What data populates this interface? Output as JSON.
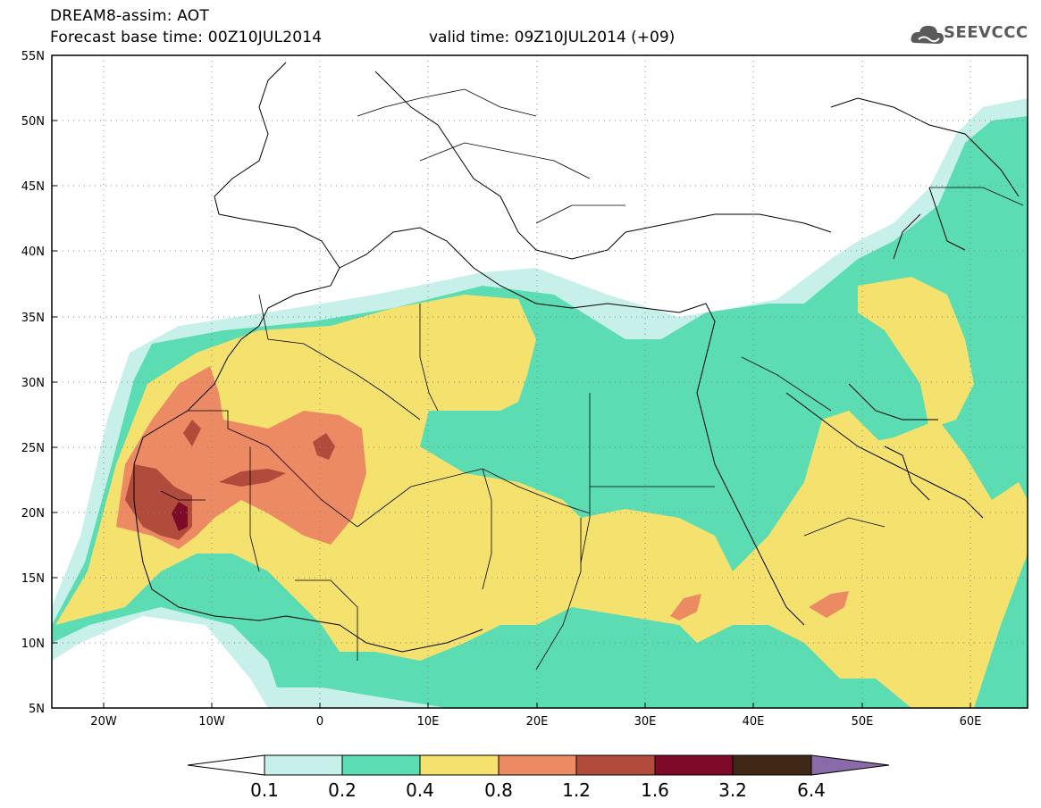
{
  "header": {
    "title": "DREAM8-assim: AOT",
    "base_time": "Forecast base time: 00Z10JUL2014",
    "valid_time": "valid time: 09Z10JUL2014 (+09)",
    "logo_text": "SEEVCCC"
  },
  "axes": {
    "lat_ticks": [
      "55N",
      "50N",
      "45N",
      "40N",
      "35N",
      "30N",
      "25N",
      "20N",
      "15N",
      "10N",
      "5N"
    ],
    "lon_ticks": [
      "20W",
      "10W",
      "0",
      "10E",
      "20E",
      "30E",
      "40E",
      "50E",
      "60E"
    ]
  },
  "colorbar": {
    "labels": [
      "0.1",
      "0.2",
      "0.4",
      "0.8",
      "1.2",
      "1.6",
      "3.2",
      "6.4"
    ],
    "colors": [
      "#c8f0ea",
      "#5cdcb2",
      "#f5e26e",
      "#ec8a64",
      "#b14b3c",
      "#7e0a2a",
      "#3f2916",
      "#8a6aa8"
    ]
  },
  "colors": {
    "c01": "#c8f0ea",
    "c02": "#5cdcb2",
    "c04": "#f5e26e",
    "c08": "#ec8a64",
    "c12": "#b14b3c",
    "c16": "#7e0a2a"
  }
}
